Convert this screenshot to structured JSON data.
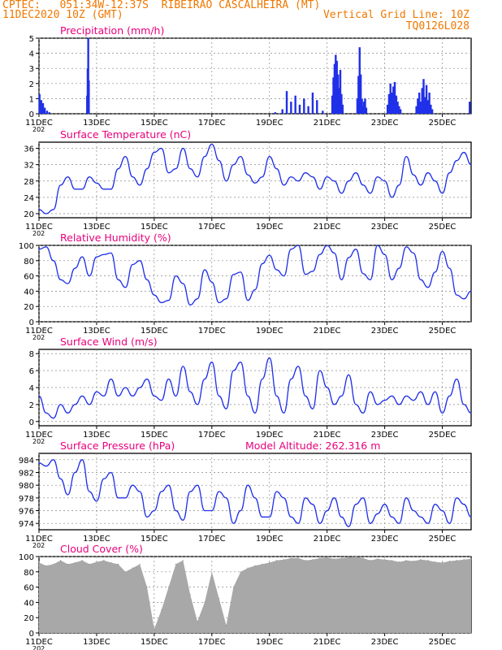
{
  "header": {
    "line1": "CPTEC:   051:34W-12:37S  RIBEIRAO CASCALHEIRA (MT)",
    "line2_left": "11DEC2020 10Z (GMT)",
    "line2_right": "Vertical Grid Line: 10Z",
    "line3_right": "TQ0126L028"
  },
  "colors": {
    "header": "#f07800",
    "title": "#e8007c",
    "series": "#2030e8",
    "cloud": "#a8a8a8",
    "grid": "#888888"
  },
  "x_axis": {
    "ticks": [
      "11DEC",
      "13DEC",
      "15DEC",
      "17DEC",
      "19DEC",
      "21DEC",
      "23DEC",
      "25DEC"
    ],
    "tick_days": [
      0,
      2,
      4,
      6,
      8,
      10,
      12,
      14
    ],
    "range_days": [
      0,
      15
    ],
    "clipped_year_label": "202"
  },
  "chart_data": [
    {
      "id": "precip",
      "type": "bar",
      "title": "Precipitation (mm/h)",
      "ylim": [
        0,
        5
      ],
      "yticks": [
        "0",
        "1",
        "2",
        "3",
        "4",
        "5"
      ],
      "x": [
        0.02,
        0.08,
        0.14,
        0.2,
        0.28,
        0.36,
        1.67,
        1.69,
        1.71,
        1.73,
        8.2,
        8.45,
        8.6,
        8.75,
        8.9,
        9.05,
        9.2,
        9.35,
        9.5,
        9.65,
        9.85,
        10.18,
        10.22,
        10.26,
        10.3,
        10.34,
        10.38,
        10.42,
        10.46,
        10.5,
        10.54,
        11.05,
        11.09,
        11.13,
        11.17,
        11.21,
        11.24,
        11.28,
        11.32,
        11.36,
        12.1,
        12.15,
        12.2,
        12.25,
        12.3,
        12.35,
        12.4,
        12.45,
        12.5,
        12.55,
        13.1,
        13.15,
        13.2,
        13.25,
        13.3,
        13.35,
        13.4,
        13.45,
        13.5,
        13.55,
        13.6,
        13.65,
        14.95
      ],
      "values": [
        1.3,
        0.9,
        0.7,
        0.4,
        0.2,
        0.1,
        1.2,
        3.0,
        5.0,
        2.2,
        0.1,
        0.3,
        1.5,
        0.8,
        1.2,
        0.6,
        1.0,
        0.5,
        1.4,
        0.9,
        0.2,
        1.2,
        2.4,
        3.3,
        3.9,
        3.5,
        2.6,
        1.7,
        2.9,
        1.3,
        0.6,
        1.0,
        2.5,
        4.4,
        2.6,
        1.0,
        0.5,
        0.8,
        1.0,
        0.4,
        0.6,
        1.3,
        2.0,
        1.4,
        1.8,
        2.1,
        1.2,
        0.8,
        0.5,
        0.3,
        0.5,
        1.0,
        1.4,
        0.8,
        1.7,
        2.3,
        1.1,
        1.9,
        0.9,
        1.4,
        0.6,
        0.3,
        0.8
      ]
    },
    {
      "id": "temp",
      "type": "line",
      "title": "Surface Temperature (nC)",
      "ylim": [
        19,
        37.5
      ],
      "yticks": [
        "20",
        "24",
        "28",
        "32",
        "36"
      ],
      "x": [
        0,
        0.25,
        0.5,
        0.75,
        1.0,
        1.25,
        1.5,
        1.75,
        2.0,
        2.25,
        2.5,
        2.75,
        3.0,
        3.25,
        3.5,
        3.75,
        4.0,
        4.25,
        4.5,
        4.75,
        5.0,
        5.25,
        5.5,
        5.75,
        6.0,
        6.25,
        6.5,
        6.75,
        7.0,
        7.25,
        7.5,
        7.75,
        8.0,
        8.25,
        8.5,
        8.75,
        9.0,
        9.25,
        9.5,
        9.75,
        10.0,
        10.25,
        10.5,
        10.75,
        11.0,
        11.25,
        11.5,
        11.75,
        12.0,
        12.25,
        12.5,
        12.75,
        13.0,
        13.25,
        13.5,
        13.75,
        14.0,
        14.25,
        14.5,
        14.75,
        15.0
      ],
      "values": [
        21,
        20,
        21,
        27,
        29,
        26,
        26,
        29,
        27.5,
        26,
        26,
        31,
        34,
        29,
        27,
        31,
        35,
        36,
        30,
        31,
        36,
        31,
        29,
        34,
        37,
        33,
        28,
        32,
        34,
        29.5,
        27.5,
        29,
        34,
        31,
        27,
        29,
        28,
        30,
        29,
        26,
        29,
        28,
        25,
        28,
        30,
        27,
        25,
        29,
        28,
        24,
        27,
        34,
        29.5,
        27,
        30,
        28,
        25,
        30,
        33,
        35,
        32
      ]
    },
    {
      "id": "rh",
      "type": "line",
      "title": "Relative Humidity (%)",
      "ylim": [
        0,
        100
      ],
      "yticks": [
        "0",
        "20",
        "40",
        "60",
        "80",
        "100"
      ],
      "x": [
        0,
        0.25,
        0.5,
        0.75,
        1.0,
        1.25,
        1.5,
        1.75,
        2.0,
        2.25,
        2.5,
        2.75,
        3.0,
        3.25,
        3.5,
        3.75,
        4.0,
        4.25,
        4.5,
        4.75,
        5.0,
        5.25,
        5.5,
        5.75,
        6.0,
        6.25,
        6.5,
        6.75,
        7.0,
        7.25,
        7.5,
        7.75,
        8.0,
        8.25,
        8.5,
        8.75,
        9.0,
        9.25,
        9.5,
        9.75,
        10.0,
        10.25,
        10.5,
        10.75,
        11.0,
        11.25,
        11.5,
        11.75,
        12.0,
        12.25,
        12.5,
        12.75,
        13.0,
        13.25,
        13.5,
        13.75,
        14.0,
        14.25,
        14.5,
        14.75,
        15.0
      ],
      "values": [
        95,
        98,
        80,
        55,
        50,
        70,
        85,
        60,
        85,
        88,
        90,
        55,
        45,
        75,
        80,
        55,
        35,
        25,
        28,
        60,
        50,
        22,
        30,
        68,
        52,
        25,
        30,
        62,
        65,
        28,
        42,
        76,
        87,
        68,
        60,
        95,
        100,
        62,
        66,
        88,
        100,
        90,
        55,
        84,
        95,
        63,
        55,
        100,
        88,
        55,
        70,
        98,
        90,
        55,
        45,
        65,
        92,
        70,
        35,
        30,
        40
      ]
    },
    {
      "id": "wind",
      "type": "line",
      "title": "Surface Wind (m/s)",
      "ylim": [
        -0.5,
        8.5
      ],
      "yticks": [
        "0",
        "2",
        "4",
        "6",
        "8"
      ],
      "x": [
        0,
        0.25,
        0.5,
        0.75,
        1.0,
        1.25,
        1.5,
        1.75,
        2.0,
        2.25,
        2.5,
        2.75,
        3.0,
        3.25,
        3.5,
        3.75,
        4.0,
        4.25,
        4.5,
        4.75,
        5.0,
        5.25,
        5.5,
        5.75,
        6.0,
        6.25,
        6.5,
        6.75,
        7.0,
        7.25,
        7.5,
        7.75,
        8.0,
        8.25,
        8.5,
        8.75,
        9.0,
        9.25,
        9.5,
        9.75,
        10.0,
        10.25,
        10.5,
        10.75,
        11.0,
        11.25,
        11.5,
        11.75,
        12.0,
        12.25,
        12.5,
        12.75,
        13.0,
        13.25,
        13.5,
        13.75,
        14.0,
        14.25,
        14.5,
        14.75,
        15.0
      ],
      "values": [
        3,
        1,
        0.4,
        2,
        1,
        2,
        3,
        2,
        3.5,
        3,
        5,
        3,
        4,
        3,
        4,
        5,
        3,
        2.5,
        5,
        3,
        6.5,
        3.5,
        2,
        5,
        7,
        3,
        1.5,
        6,
        7,
        3,
        1,
        5,
        7.5,
        3,
        1,
        5,
        6.5,
        3,
        1.5,
        6,
        4,
        2,
        3,
        5.5,
        2,
        1,
        3.5,
        2,
        2.5,
        3,
        2,
        3,
        2.5,
        3.5,
        2,
        3.5,
        1,
        3,
        5,
        2,
        1
      ]
    },
    {
      "id": "pressure",
      "type": "line",
      "title": "Surface Pressure (hPa)",
      "annotation": "Model Altitude: 262.316 m",
      "ylim": [
        973,
        985
      ],
      "yticks": [
        "974",
        "976",
        "978",
        "980",
        "982",
        "984"
      ],
      "x": [
        0,
        0.25,
        0.5,
        0.75,
        1.0,
        1.25,
        1.5,
        1.75,
        2.0,
        2.25,
        2.5,
        2.75,
        3.0,
        3.25,
        3.5,
        3.75,
        4.0,
        4.25,
        4.5,
        4.75,
        5.0,
        5.25,
        5.5,
        5.75,
        6.0,
        6.25,
        6.5,
        6.75,
        7.0,
        7.25,
        7.5,
        7.75,
        8.0,
        8.25,
        8.5,
        8.75,
        9.0,
        9.25,
        9.5,
        9.75,
        10.0,
        10.25,
        10.5,
        10.75,
        11.0,
        11.25,
        11.5,
        11.75,
        12.0,
        12.25,
        12.5,
        12.75,
        13.0,
        13.25,
        13.5,
        13.75,
        14.0,
        14.25,
        14.5,
        14.75,
        15.0
      ],
      "values": [
        983.5,
        983,
        984,
        981,
        978.5,
        982,
        984,
        979,
        977.5,
        981,
        982,
        978,
        978,
        980,
        979,
        975,
        976,
        979,
        980,
        976,
        974.5,
        979,
        980,
        976,
        976,
        979,
        978,
        974,
        976,
        980,
        978,
        975,
        975,
        979,
        978,
        975,
        974,
        978,
        977,
        974,
        976,
        978,
        975,
        973.5,
        977,
        978,
        974,
        975.5,
        977,
        975,
        974,
        978,
        976,
        975,
        974,
        977,
        976,
        974,
        978,
        977,
        975
      ]
    },
    {
      "id": "cloud",
      "type": "area",
      "title": "Cloud Cover (%)",
      "ylim": [
        0,
        100
      ],
      "yticks": [
        "0",
        "20",
        "40",
        "60",
        "80",
        "100"
      ],
      "x": [
        0,
        0.25,
        0.5,
        0.75,
        1.0,
        1.25,
        1.5,
        1.75,
        2.0,
        2.25,
        2.5,
        2.75,
        3.0,
        3.25,
        3.5,
        3.75,
        4.0,
        4.25,
        4.5,
        4.75,
        5.0,
        5.25,
        5.5,
        5.75,
        6.0,
        6.25,
        6.5,
        6.75,
        7.0,
        7.25,
        7.5,
        7.75,
        8.0,
        8.25,
        8.5,
        8.75,
        9.0,
        9.25,
        9.5,
        9.75,
        10.0,
        10.25,
        10.5,
        10.75,
        11.0,
        11.25,
        11.5,
        11.75,
        12.0,
        12.25,
        12.5,
        12.75,
        13.0,
        13.25,
        13.5,
        13.75,
        14.0,
        14.25,
        14.5,
        14.75,
        15.0
      ],
      "values": [
        92,
        88,
        90,
        95,
        90,
        92,
        95,
        90,
        93,
        95,
        92,
        90,
        80,
        85,
        90,
        60,
        5,
        30,
        60,
        90,
        95,
        50,
        15,
        40,
        80,
        45,
        10,
        60,
        80,
        85,
        88,
        90,
        92,
        95,
        96,
        98,
        98,
        95,
        96,
        98,
        99,
        97,
        98,
        99,
        100,
        98,
        95,
        97,
        96,
        95,
        93,
        95,
        94,
        96,
        95,
        93,
        92,
        94,
        95,
        96,
        97
      ]
    }
  ]
}
